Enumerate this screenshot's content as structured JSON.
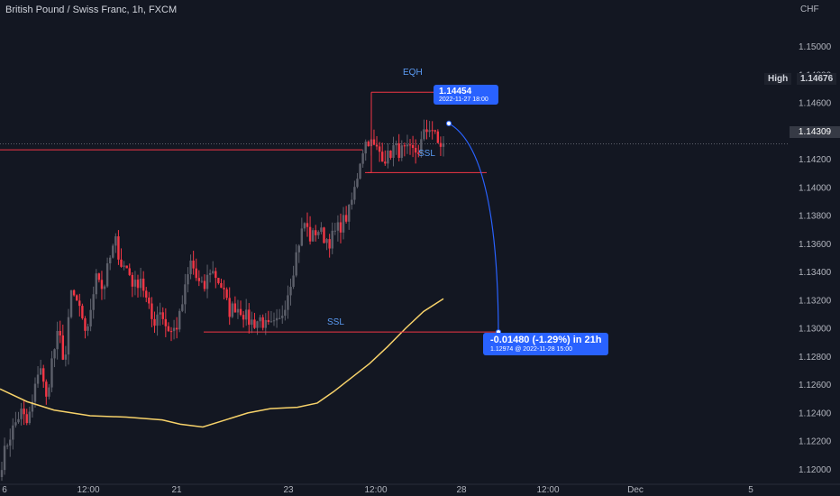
{
  "header": {
    "title": "British Pound / Swiss Franc, 1h, FXCM",
    "currency": "CHF"
  },
  "price_axis": {
    "high_label": "High",
    "high_value": "1.14676",
    "current_price": "1.14309"
  },
  "annotations": {
    "eqh": "EQH",
    "ssl_upper": "SSL",
    "ssl_lower": "SSL"
  },
  "tooltip_start": {
    "value": "1.14454",
    "date": "2022-11-27 18:00"
  },
  "tooltip_end": {
    "value": "-0.01480 (-1.29%) in 21h",
    "detail": "1.12974 @ 2022-11-28  15:00"
  },
  "colors": {
    "background": "#131722",
    "bull": "#5d606b",
    "bear": "#f23645",
    "moving_average": "#f7d26a",
    "level_line": "#f23645",
    "projection": "#2962ff",
    "annotation_text": "#5b9cf6"
  },
  "chart_data": {
    "type": "candlestick",
    "title": "British Pound / Swiss Franc, 1h, FXCM",
    "ylabel": "CHF",
    "ylim": [
      1.119,
      1.1533
    ],
    "y_ticks": [
      "1.15000",
      "1.14800",
      "1.14600",
      "1.14400",
      "1.14200",
      "1.14000",
      "1.13800",
      "1.13600",
      "1.13400",
      "1.13200",
      "1.13000",
      "1.12800",
      "1.12600",
      "1.12400",
      "1.12200",
      "1.12000"
    ],
    "x_ticks": [
      "6",
      "12:00",
      "21",
      "23",
      "12:00",
      "28",
      "12:00",
      "Dec",
      "5"
    ],
    "ohlc_anchors": [
      [
        1.1205,
        1.1221,
        1.1231
      ],
      [
        1.1241,
        1.1232,
        1.1249
      ],
      [
        1.1278,
        1.1248,
        1.1279
      ],
      [
        1.1297,
        1.1275,
        1.1325
      ],
      [
        1.1318,
        1.1298,
        1.1306
      ],
      [
        1.1344,
        1.1326,
        1.1347
      ],
      [
        1.1362,
        1.1345,
        1.1342
      ],
      [
        1.1329,
        1.1337,
        1.1318
      ],
      [
        1.1303,
        1.1315,
        1.1302
      ],
      [
        1.1297,
        1.1304,
        1.1326
      ],
      [
        1.1348,
        1.1333,
        1.1327
      ],
      [
        1.1342,
        1.1337,
        1.1328
      ],
      [
        1.1312,
        1.1316,
        1.1313
      ],
      [
        1.1306,
        1.1304,
        1.1307
      ],
      [
        1.13,
        1.1301,
        1.1304
      ],
      [
        1.132,
        1.1338,
        1.136
      ],
      [
        1.1375,
        1.1363,
        1.1371
      ],
      [
        1.1365,
        1.1362,
        1.1369
      ],
      [
        1.1375,
        1.1382,
        1.14
      ],
      [
        1.1425,
        1.1435,
        1.1428
      ],
      [
        1.1425,
        1.142,
        1.1428
      ],
      [
        1.1426,
        1.1425,
        1.1425
      ],
      [
        1.1426,
        1.1438,
        1.1445
      ],
      [
        1.1431,
        1.143
      ]
    ],
    "moving_average": [
      [
        0,
        1.1257
      ],
      [
        30,
        1.1248
      ],
      [
        60,
        1.1242
      ],
      [
        100,
        1.1238
      ],
      [
        140,
        1.1237
      ],
      [
        180,
        1.1235
      ],
      [
        200,
        1.1232
      ],
      [
        225,
        1.123
      ],
      [
        250,
        1.1235
      ],
      [
        275,
        1.124
      ],
      [
        300,
        1.1243
      ],
      [
        330,
        1.1244
      ],
      [
        352,
        1.1247
      ],
      [
        370,
        1.1255
      ],
      [
        390,
        1.1265
      ],
      [
        410,
        1.1275
      ],
      [
        430,
        1.1287
      ],
      [
        450,
        1.13
      ],
      [
        470,
        1.1312
      ],
      [
        492,
        1.1321
      ]
    ],
    "levels": [
      {
        "name": "red-line-1",
        "y": 1.14267,
        "x_start": 0,
        "x_end": 402
      },
      {
        "name": "eqh",
        "y": 1.14676,
        "x_start": 412,
        "x_end": 503
      },
      {
        "name": "ssl-upper",
        "y": 1.14105,
        "x_start": 405,
        "x_end": 540
      },
      {
        "name": "ssl-lower",
        "y": 1.12974,
        "x_start": 226,
        "x_end": 553
      }
    ],
    "current_price": 1.14309,
    "projection": {
      "from": 1.14454,
      "to": 1.12974
    }
  }
}
